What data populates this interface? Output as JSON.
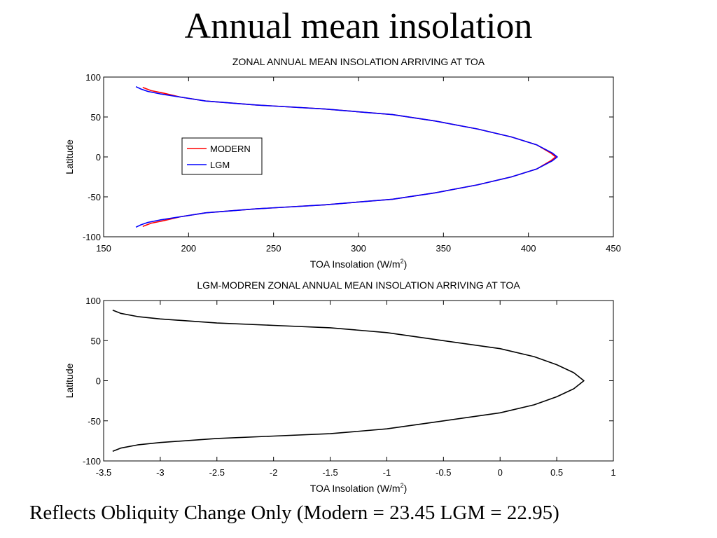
{
  "slide": {
    "title": "Annual mean insolation",
    "caption": "Reflects Obliquity Change Only (Modern = 23.45 LGM = 22.95)"
  },
  "colors": {
    "modern": "#ff0000",
    "lgm": "#0000ff",
    "difference": "#000000"
  },
  "chart_data": [
    {
      "type": "line",
      "title": "ZONAL ANNUAL MEAN INSOLATION ARRIVING AT TOA",
      "xlabel": "TOA Insolation (W/m",
      "xlabel_sup": "2",
      "xlabel_end": ")",
      "ylabel": "Latitude",
      "xlim": [
        150,
        450
      ],
      "ylim": [
        -100,
        100
      ],
      "xticks": [
        150,
        200,
        250,
        300,
        350,
        400,
        450
      ],
      "yticks": [
        100,
        50,
        0,
        -50,
        -100
      ],
      "grid": false,
      "legend": {
        "placement": "center-left",
        "entries": [
          "MODERN",
          "LGM"
        ]
      },
      "series": [
        {
          "name": "MODERN",
          "color": "#ff0000",
          "points": [
            [
              173,
              87
            ],
            [
              178,
              83
            ],
            [
              185,
              80
            ],
            [
              195,
              75
            ],
            [
              210,
              70
            ],
            [
              240,
              65
            ],
            [
              280,
              60
            ],
            [
              320,
              53
            ],
            [
              345,
              45
            ],
            [
              370,
              35
            ],
            [
              390,
              25
            ],
            [
              405,
              15
            ],
            [
              413,
              5
            ],
            [
              416,
              0
            ],
            [
              413,
              -5
            ],
            [
              405,
              -15
            ],
            [
              390,
              -25
            ],
            [
              370,
              -35
            ],
            [
              345,
              -45
            ],
            [
              320,
              -53
            ],
            [
              280,
              -60
            ],
            [
              240,
              -65
            ],
            [
              210,
              -70
            ],
            [
              195,
              -75
            ],
            [
              185,
              -80
            ],
            [
              178,
              -83
            ],
            [
              173,
              -87
            ]
          ]
        },
        {
          "name": "LGM",
          "color": "#0000ff",
          "points": [
            [
              169,
              88
            ],
            [
              172,
              85
            ],
            [
              176,
              82
            ],
            [
              183,
              79
            ],
            [
              195,
              75
            ],
            [
              210,
              70
            ],
            [
              240,
              65
            ],
            [
              280,
              60
            ],
            [
              320,
              53
            ],
            [
              345,
              45
            ],
            [
              370,
              35
            ],
            [
              390,
              25
            ],
            [
              405,
              15
            ],
            [
              414,
              5
            ],
            [
              417,
              0
            ],
            [
              414,
              -5
            ],
            [
              405,
              -15
            ],
            [
              390,
              -25
            ],
            [
              370,
              -35
            ],
            [
              345,
              -45
            ],
            [
              320,
              -53
            ],
            [
              280,
              -60
            ],
            [
              240,
              -65
            ],
            [
              210,
              -70
            ],
            [
              195,
              -75
            ],
            [
              183,
              -79
            ],
            [
              176,
              -82
            ],
            [
              172,
              -85
            ],
            [
              169,
              -88
            ]
          ]
        }
      ]
    },
    {
      "type": "line",
      "title": "LGM-MODREN ZONAL ANNUAL MEAN INSOLATION ARRIVING AT TOA",
      "xlabel": "TOA Insolation (W/m",
      "xlabel_sup": "2",
      "xlabel_end": ")",
      "ylabel": "Latitude",
      "xlim": [
        -3.5,
        1
      ],
      "ylim": [
        -100,
        100
      ],
      "xticks": [
        -3.5,
        -3,
        -2.5,
        -2,
        -1.5,
        -1,
        -0.5,
        0,
        0.5,
        1
      ],
      "yticks": [
        100,
        50,
        0,
        -50,
        -100
      ],
      "grid": false,
      "series": [
        {
          "color": "#000000",
          "points": [
            [
              -3.42,
              88
            ],
            [
              -3.35,
              84
            ],
            [
              -3.2,
              80
            ],
            [
              -3.0,
              77
            ],
            [
              -2.5,
              72
            ],
            [
              -2.0,
              69
            ],
            [
              -1.5,
              66
            ],
            [
              -1.0,
              60
            ],
            [
              -0.5,
              50
            ],
            [
              0.0,
              40
            ],
            [
              0.3,
              30
            ],
            [
              0.5,
              20
            ],
            [
              0.65,
              10
            ],
            [
              0.74,
              0
            ],
            [
              0.65,
              -10
            ],
            [
              0.5,
              -20
            ],
            [
              0.3,
              -30
            ],
            [
              0.0,
              -40
            ],
            [
              -0.5,
              -50
            ],
            [
              -1.0,
              -60
            ],
            [
              -1.5,
              -66
            ],
            [
              -2.0,
              -69
            ],
            [
              -2.5,
              -72
            ],
            [
              -3.0,
              -77
            ],
            [
              -3.2,
              -80
            ],
            [
              -3.35,
              -84
            ],
            [
              -3.42,
              -88
            ]
          ]
        }
      ]
    }
  ]
}
